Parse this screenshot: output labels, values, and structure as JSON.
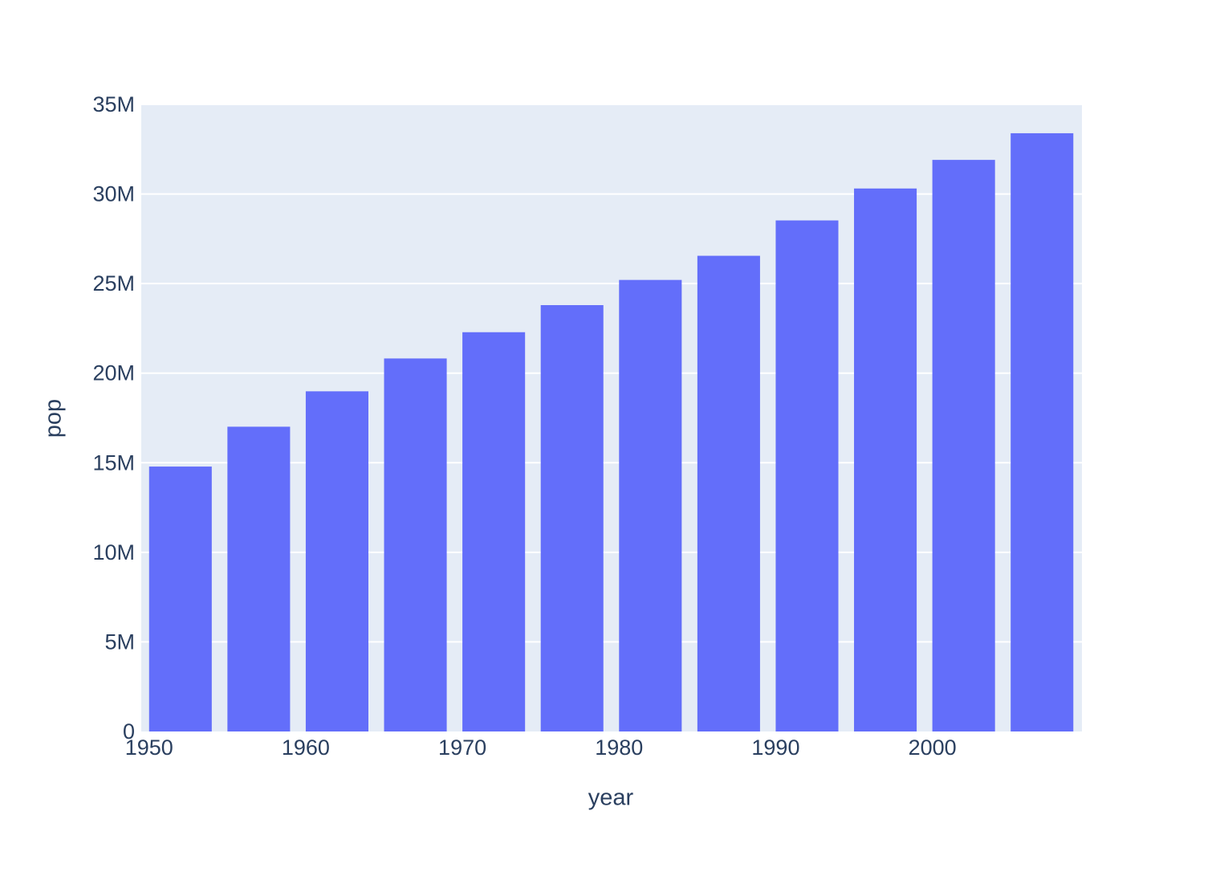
{
  "chart_data": {
    "type": "bar",
    "title": "",
    "xlabel": "year",
    "ylabel": "pop",
    "x": [
      1952,
      1957,
      1962,
      1967,
      1972,
      1977,
      1982,
      1987,
      1992,
      1997,
      2002,
      2007
    ],
    "values": [
      14785584,
      17010154,
      18985849,
      20819767,
      22284500,
      23796400,
      25201900,
      26549700,
      28523502,
      30305843,
      31902268,
      33390141
    ],
    "series_name": "pop",
    "xlim": [
      1949.5,
      2009.55
    ],
    "ylim": [
      0,
      35000000
    ],
    "bar_width_x": 4,
    "grid": true,
    "legend": false,
    "ytick_values": [
      0,
      5000000,
      10000000,
      15000000,
      20000000,
      25000000,
      30000000,
      35000000
    ],
    "ytick_labels": [
      "0",
      "5M",
      "10M",
      "15M",
      "20M",
      "25M",
      "30M",
      "35M"
    ],
    "xtick_values": [
      1950,
      1960,
      1970,
      1980,
      1990,
      2000
    ],
    "xtick_labels": [
      "1950",
      "1960",
      "1970",
      "1980",
      "1990",
      "2000"
    ],
    "colors": {
      "bar": "#636EFA",
      "plot_bg": "#E5ECF6",
      "grid": "#FFFFFF",
      "text": "#2A3F5F",
      "paper_bg": "#FFFFFF"
    }
  }
}
